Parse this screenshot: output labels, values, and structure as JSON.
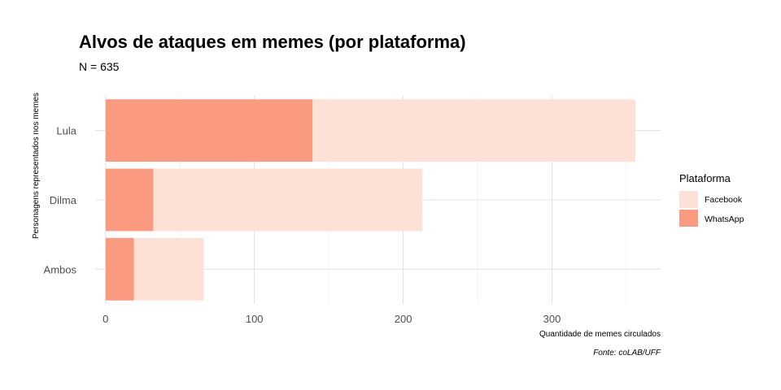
{
  "chart_data": {
    "type": "bar",
    "orientation": "horizontal",
    "position": "overlay",
    "title": "Alvos de ataques em memes (por plataforma)",
    "subtitle": "N = 635",
    "xlabel": "Quantidade de memes circulados",
    "ylabel": "Personagens representados nos memes",
    "caption": "Fonte: coLAB/UFF",
    "categories": [
      "Lula",
      "Dilma",
      "Ambos"
    ],
    "series": [
      {
        "name": "Facebook",
        "color": "#fde0d6",
        "values": [
          356,
          213,
          66
        ]
      },
      {
        "name": "WhatsApp",
        "color": "#fa9a80",
        "values": [
          139,
          32,
          19
        ]
      }
    ],
    "xlim": [
      -7,
      373
    ],
    "xticks": [
      0,
      100,
      200,
      300
    ],
    "grid": true,
    "legend": {
      "title": "Plataforma",
      "placement": "right"
    }
  }
}
